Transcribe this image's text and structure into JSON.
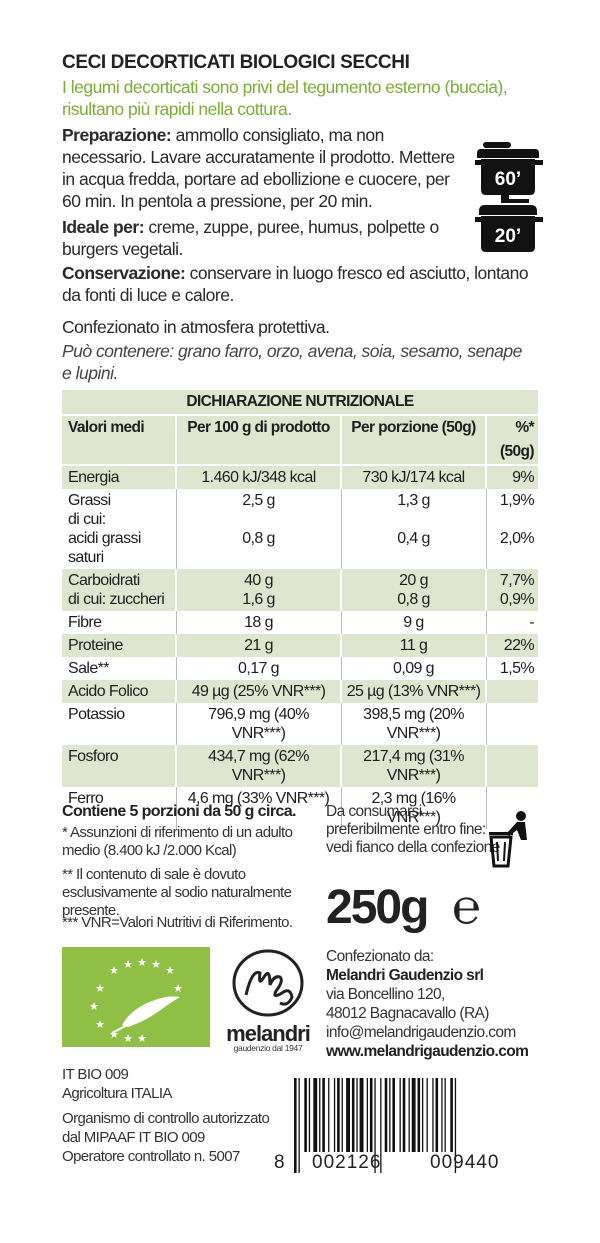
{
  "title": "CECI DECORTICATI BIOLOGICI SECCHI",
  "intro": "I legumi decorticati sono privi del tegumento esterno (buccia), risultano più rapidi nella cottura.",
  "preparation": {
    "label": "Preparazione:",
    "text": " ammollo consigliato, ma non necessario. Lavare accuratamente il prodotto. Mettere in acqua fredda, portare ad ebollizione e cuocere, per 60 min. In pentola a pressione, per 20 min."
  },
  "ideal": {
    "label": "Ideale per:",
    "text": " creme, zuppe, puree, humus, polpette o burgers vegetali."
  },
  "storage": {
    "label": "Conservazione:",
    "text": " conservare in luogo fresco ed asciutto, lontano da fonti di luce e calore."
  },
  "packaging_note": "Confezionato in atmosfera protettiva.",
  "may_contain": "Può contenere: grano farro, orzo, avena, soia, sesamo, senape e lupini.",
  "cooking_icons": {
    "pot": {
      "icon": "pot-icon",
      "label": "60’"
    },
    "pressure_cooker": {
      "icon": "pressure-cooker-icon",
      "label": "20’"
    }
  },
  "nutrition": {
    "heading": "DICHIARAZIONE NUTRIZIONALE",
    "columns": [
      "Valori medi",
      "Per 100 g di prodotto",
      "Per porzione (50g)",
      "%*(50g)"
    ],
    "rows": [
      {
        "name": "Energia",
        "per100": "1.460 kJ/348 kcal",
        "portion": "730 kJ/174 kcal",
        "pct": "9%"
      },
      {
        "name": "Grassi",
        "per100": "2,5 g",
        "portion": "1,3 g",
        "pct": "1,9%"
      },
      {
        "name": "di cui:",
        "per100": "",
        "portion": "",
        "pct": ""
      },
      {
        "name": "acidi grassi saturi",
        "per100": "0,8 g",
        "portion": "0,4 g",
        "pct": "2,0%"
      },
      {
        "name": "Carboidrati",
        "per100": "40 g",
        "portion": "20 g",
        "pct": "7,7%"
      },
      {
        "name": "di cui: zuccheri",
        "per100": "1,6 g",
        "portion": "0,8 g",
        "pct": "0,9%"
      },
      {
        "name": "Fibre",
        "per100": "18 g",
        "portion": "9 g",
        "pct": "-"
      },
      {
        "name": "Proteine",
        "per100": "21 g",
        "portion": "11 g",
        "pct": "22%"
      },
      {
        "name": "Sale**",
        "per100": "0,17 g",
        "portion": "0,09 g",
        "pct": "1,5%"
      },
      {
        "name": "Acido Folico",
        "per100": "49 µg (25% VNR***)",
        "portion": "25 µg (13% VNR***)",
        "pct": ""
      },
      {
        "name": "Potassio",
        "per100": "796,9 mg (40% VNR***)",
        "portion": "398,5 mg (20% VNR***)",
        "pct": ""
      },
      {
        "name": "Fosforo",
        "per100": "434,7 mg (62% VNR***)",
        "portion": "217,4 mg (31% VNR***)",
        "pct": ""
      },
      {
        "name": "Ferro",
        "per100": "4,6 mg (33% VNR***)",
        "portion": "2,3 mg (16% VNR***)",
        "pct": ""
      }
    ]
  },
  "portions_note": "Contiene 5 porzioni da 50 g circa.",
  "footnotes": [
    "* Assunzioni di riferimento di un adulto medio (8.400 kJ /2.000 Kcal)",
    "** Il contenuto di sale è dovuto esclusivamente al sodio naturalmente presente.",
    "*** VNR=Valori Nutritivi di Riferimento."
  ],
  "best_before": "Da consumarsi preferibilmente entro fine: vedi fianco della confezione",
  "recycle_icon": "trash-bin-icon",
  "weight": "250g",
  "estimated_sign": "℮",
  "eu_organic_logo": "eu-organic-leaf-logo",
  "brand": {
    "name": "melandri",
    "tagline": "gaudenzio dal 1947",
    "monogram": "mg-monogram-logo"
  },
  "packer": {
    "label": "Confezionato da:",
    "company": "Melandri Gaudenzio srl",
    "street": "via Boncellino 120,",
    "city": "48012 Bagnacavallo (RA)",
    "email": "info@melandrigaudenzio.com",
    "website": "www.melandrigaudenzio.com"
  },
  "certification": [
    "IT BIO 009",
    "Agricoltura ITALIA",
    "Organismo di controllo autorizzato dal MIPAAF IT BIO 009",
    "Operatore controllato n. 5007"
  ],
  "barcode": {
    "first": "8",
    "left": "002126",
    "right": "009440",
    "icon": "ean13-barcode"
  }
}
